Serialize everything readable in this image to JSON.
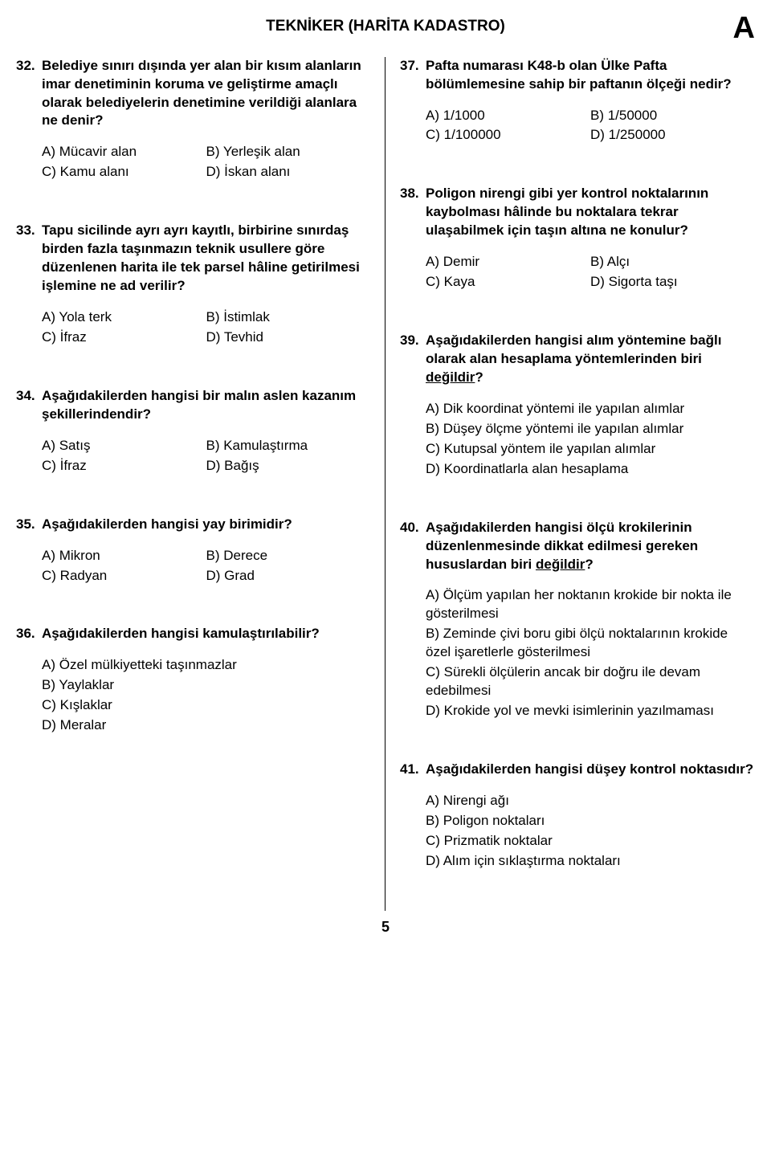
{
  "header": {
    "title": "TEKNİKER (HARİTA KADASTRO)",
    "booklet": "A"
  },
  "pageNumber": "5",
  "questions": [
    {
      "num": "32.",
      "text": "Belediye sınırı dışında yer alan bir kısım alanların imar denetiminin koruma ve geliştirme amaçlı olarak belediyelerin denetimine verildiği alanlara ne denir?",
      "layout": "2x2",
      "opts": [
        "A) Mücavir alan",
        "B) Yerleşik alan",
        "C) Kamu alanı",
        "D) İskan alanı"
      ]
    },
    {
      "num": "33.",
      "text": "Tapu sicilinde ayrı ayrı kayıtlı, birbirine sınırdaş birden fazla taşınmazın teknik usullere göre düzenlenen harita ile tek parsel hâline getirilmesi işlemine ne ad verilir?",
      "layout": "2x2",
      "opts": [
        "A) Yola terk",
        "B) İstimlak",
        "C) İfraz",
        "D) Tevhid"
      ]
    },
    {
      "num": "34.",
      "text": "Aşağıdakilerden hangisi bir malın aslen kazanım şekillerindendir?",
      "layout": "2x2",
      "opts": [
        "A) Satış",
        "B) Kamulaştırma",
        "C) İfraz",
        "D) Bağış"
      ]
    },
    {
      "num": "35.",
      "text": "Aşağıdakilerden hangisi yay birimidir?",
      "layout": "2x2",
      "opts": [
        "A) Mikron",
        "B) Derece",
        "C) Radyan",
        "D) Grad"
      ]
    },
    {
      "num": "36.",
      "text": "Aşağıdakilerden hangisi kamulaştırılabilir?",
      "layout": "1x4",
      "opts": [
        "A) Özel mülkiyetteki taşınmazlar",
        "B) Yaylaklar",
        "C) Kışlaklar",
        "D) Meralar"
      ]
    },
    {
      "num": "37.",
      "text": "Pafta numarası K48-b olan Ülke Pafta bölümlemesine sahip bir paftanın ölçeği nedir?",
      "layout": "2x2",
      "opts": [
        "A) 1/1000",
        "B) 1/50000",
        "C) 1/100000",
        "D) 1/250000"
      ]
    },
    {
      "num": "38.",
      "text": "Poligon nirengi gibi yer kontrol noktalarının kaybolması hâlinde bu noktalara tekrar ulaşabilmek için taşın altına ne konulur?",
      "layout": "2x2",
      "opts": [
        "A) Demir",
        "B) Alçı",
        "C) Kaya",
        "D) Sigorta taşı"
      ]
    },
    {
      "num": "39.",
      "text_pre": "Aşağıdakilerden hangisi alım yöntemine bağlı olarak alan hesaplama yöntemlerinden biri ",
      "text_underlined": "değildir",
      "text_post": "?",
      "layout": "1x4",
      "opts": [
        "A) Dik koordinat yöntemi ile yapılan alımlar",
        "B) Düşey ölçme yöntemi ile yapılan alımlar",
        "C) Kutupsal yöntem ile yapılan alımlar",
        "D) Koordinatlarla alan hesaplama"
      ]
    },
    {
      "num": "40.",
      "text_pre": "Aşağıdakilerden hangisi ölçü krokilerinin düzenlenmesinde dikkat edilmesi gereken hususlardan biri ",
      "text_underlined": "değildir",
      "text_post": "?",
      "layout": "1x4",
      "opts": [
        "A) Ölçüm yapılan her noktanın krokide bir nokta ile gösterilmesi",
        "B) Zeminde çivi boru gibi ölçü noktalarının krokide özel işaretlerle gösterilmesi",
        "C) Sürekli ölçülerin ancak bir doğru ile devam edebilmesi",
        "D) Krokide yol ve mevki isimlerinin yazılmaması"
      ]
    },
    {
      "num": "41.",
      "text": "Aşağıdakilerden hangisi düşey kontrol noktasıdır?",
      "layout": "1x4",
      "opts": [
        "A) Nirengi ağı",
        "B) Poligon noktaları",
        "C) Prizmatik noktalar",
        "D) Alım için sıklaştırma noktaları"
      ]
    }
  ]
}
